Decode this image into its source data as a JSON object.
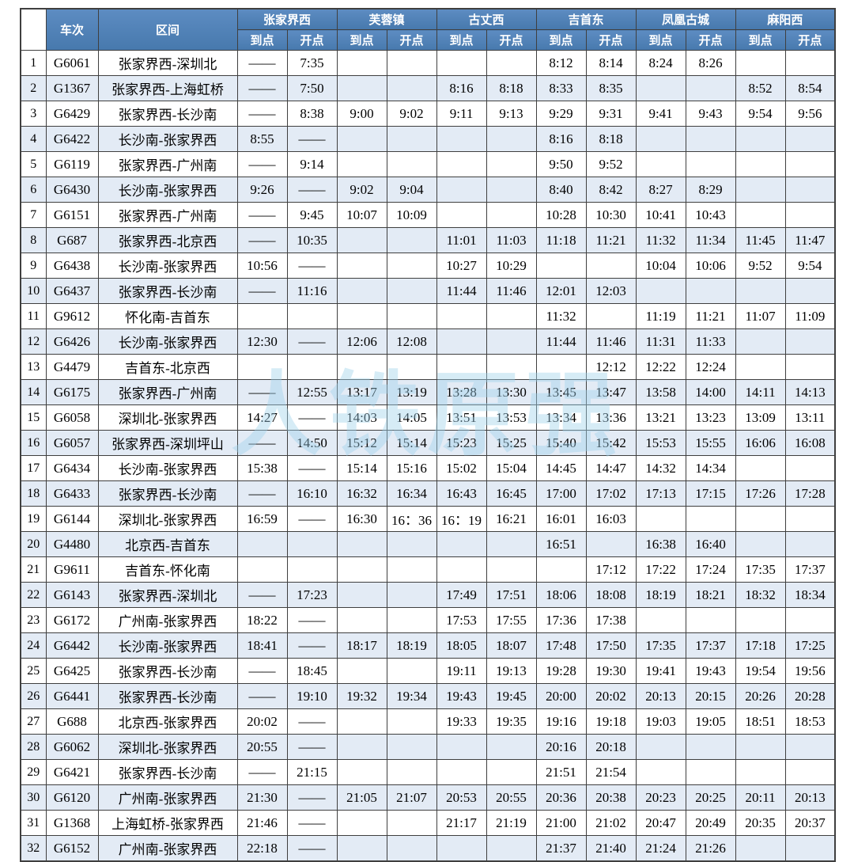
{
  "header": {
    "col_train": "车次",
    "col_section": "区间",
    "stations": [
      "张家界西",
      "芙蓉镇",
      "古丈西",
      "吉首东",
      "凤凰古城",
      "麻阳西"
    ],
    "arr_label": "到点",
    "dep_label": "开点"
  },
  "watermark": {
    "text": "人铁原强"
  },
  "colors": {
    "header_bg_top": "#5d8cc2",
    "header_bg_bottom": "#4779ad",
    "header_text": "#ffffff",
    "row_alt_bg": "#e3ebf5",
    "border": "#3f3f3f",
    "watermark": "#9fd2ec"
  },
  "rows": [
    {
      "no": "1",
      "train": "G6061",
      "section": "张家界西-深圳北",
      "t": [
        "——",
        "7:35",
        "",
        "",
        "",
        "",
        "8:12",
        "8:14",
        "8:24",
        "8:26",
        "",
        ""
      ]
    },
    {
      "no": "2",
      "train": "G1367",
      "section": "张家界西-上海虹桥",
      "t": [
        "——",
        "7:50",
        "",
        "",
        "8:16",
        "8:18",
        "8:33",
        "8:35",
        "",
        "",
        "8:52",
        "8:54"
      ]
    },
    {
      "no": "3",
      "train": "G6429",
      "section": "张家界西-长沙南",
      "t": [
        "——",
        "8:38",
        "9:00",
        "9:02",
        "9:11",
        "9:13",
        "9:29",
        "9:31",
        "9:41",
        "9:43",
        "9:54",
        "9:56"
      ]
    },
    {
      "no": "4",
      "train": "G6422",
      "section": "长沙南-张家界西",
      "t": [
        "8:55",
        "——",
        "",
        "",
        "",
        "",
        "8:16",
        "8:18",
        "",
        "",
        "",
        ""
      ]
    },
    {
      "no": "5",
      "train": "G6119",
      "section": "张家界西-广州南",
      "t": [
        "——",
        "9:14",
        "",
        "",
        "",
        "",
        "9:50",
        "9:52",
        "",
        "",
        "",
        ""
      ]
    },
    {
      "no": "6",
      "train": "G6430",
      "section": "长沙南-张家界西",
      "t": [
        "9:26",
        "——",
        "9:02",
        "9:04",
        "",
        "",
        "8:40",
        "8:42",
        "8:27",
        "8:29",
        "",
        ""
      ]
    },
    {
      "no": "7",
      "train": "G6151",
      "section": "张家界西-广州南",
      "t": [
        "——",
        "9:45",
        "10:07",
        "10:09",
        "",
        "",
        "10:28",
        "10:30",
        "10:41",
        "10:43",
        "",
        ""
      ]
    },
    {
      "no": "8",
      "train": "G687",
      "section": "张家界西-北京西",
      "t": [
        "——",
        "10:35",
        "",
        "",
        "11:01",
        "11:03",
        "11:18",
        "11:21",
        "11:32",
        "11:34",
        "11:45",
        "11:47"
      ]
    },
    {
      "no": "9",
      "train": "G6438",
      "section": "长沙南-张家界西",
      "t": [
        "10:56",
        "——",
        "",
        "",
        "10:27",
        "10:29",
        "",
        "",
        "10:04",
        "10:06",
        "9:52",
        "9:54"
      ]
    },
    {
      "no": "10",
      "train": "G6437",
      "section": "张家界西-长沙南",
      "t": [
        "——",
        "11:16",
        "",
        "",
        "11:44",
        "11:46",
        "12:01",
        "12:03",
        "",
        "",
        "",
        ""
      ]
    },
    {
      "no": "11",
      "train": "G9612",
      "section": "怀化南-吉首东",
      "t": [
        "",
        "",
        "",
        "",
        "",
        "",
        "11:32",
        "",
        "11:19",
        "11:21",
        "11:07",
        "11:09"
      ]
    },
    {
      "no": "12",
      "train": "G6426",
      "section": "长沙南-张家界西",
      "t": [
        "12:30",
        "——",
        "12:06",
        "12:08",
        "",
        "",
        "11:44",
        "11:46",
        "11:31",
        "11:33",
        "",
        ""
      ]
    },
    {
      "no": "13",
      "train": "G4479",
      "section": "吉首东-北京西",
      "t": [
        "",
        "",
        "",
        "",
        "",
        "",
        "",
        "12:12",
        "12:22",
        "12:24",
        "",
        ""
      ]
    },
    {
      "no": "14",
      "train": "G6175",
      "section": "张家界西-广州南",
      "t": [
        "——",
        "12:55",
        "13:17",
        "13:19",
        "13:28",
        "13:30",
        "13:45",
        "13:47",
        "13:58",
        "14:00",
        "14:11",
        "14:13"
      ]
    },
    {
      "no": "15",
      "train": "G6058",
      "section": "深圳北-张家界西",
      "t": [
        "14:27",
        "——",
        "14:03",
        "14:05",
        "13:51",
        "13:53",
        "13:34",
        "13:36",
        "13:21",
        "13:23",
        "13:09",
        "13:11"
      ]
    },
    {
      "no": "16",
      "train": "G6057",
      "section": "张家界西-深圳坪山",
      "t": [
        "——",
        "14:50",
        "15:12",
        "15:14",
        "15:23",
        "15:25",
        "15:40",
        "15:42",
        "15:53",
        "15:55",
        "16:06",
        "16:08"
      ]
    },
    {
      "no": "17",
      "train": "G6434",
      "section": "长沙南-张家界西",
      "t": [
        "15:38",
        "——",
        "15:14",
        "15:16",
        "15:02",
        "15:04",
        "14:45",
        "14:47",
        "14:32",
        "14:34",
        "",
        ""
      ]
    },
    {
      "no": "18",
      "train": "G6433",
      "section": "张家界西-长沙南",
      "t": [
        "——",
        "16:10",
        "16:32",
        "16:34",
        "16:43",
        "16:45",
        "17:00",
        "17:02",
        "17:13",
        "17:15",
        "17:26",
        "17:28"
      ]
    },
    {
      "no": "19",
      "train": "G6144",
      "section": "深圳北-张家界西",
      "t": [
        "16:59",
        "——",
        "16:30",
        "16：36",
        "16：19",
        "16:21",
        "16:01",
        "16:03",
        "",
        "",
        "",
        ""
      ]
    },
    {
      "no": "20",
      "train": "G4480",
      "section": "北京西-吉首东",
      "t": [
        "",
        "",
        "",
        "",
        "",
        "",
        "16:51",
        "",
        "16:38",
        "16:40",
        "",
        ""
      ]
    },
    {
      "no": "21",
      "train": "G9611",
      "section": "吉首东-怀化南",
      "t": [
        "",
        "",
        "",
        "",
        "",
        "",
        "",
        "17:12",
        "17:22",
        "17:24",
        "17:35",
        "17:37"
      ]
    },
    {
      "no": "22",
      "train": "G6143",
      "section": "张家界西-深圳北",
      "t": [
        "——",
        "17:23",
        "",
        "",
        "17:49",
        "17:51",
        "18:06",
        "18:08",
        "18:19",
        "18:21",
        "18:32",
        "18:34"
      ]
    },
    {
      "no": "23",
      "train": "G6172",
      "section": "广州南-张家界西",
      "t": [
        "18:22",
        "——",
        "",
        "",
        "17:53",
        "17:55",
        "17:36",
        "17:38",
        "",
        "",
        "",
        ""
      ]
    },
    {
      "no": "24",
      "train": "G6442",
      "section": "长沙南-张家界西",
      "t": [
        "18:41",
        "——",
        "18:17",
        "18:19",
        "18:05",
        "18:07",
        "17:48",
        "17:50",
        "17:35",
        "17:37",
        "17:18",
        "17:25"
      ]
    },
    {
      "no": "25",
      "train": "G6425",
      "section": "张家界西-长沙南",
      "t": [
        "——",
        "18:45",
        "",
        "",
        "19:11",
        "19:13",
        "19:28",
        "19:30",
        "19:41",
        "19:43",
        "19:54",
        "19:56"
      ]
    },
    {
      "no": "26",
      "train": "G6441",
      "section": "张家界西-长沙南",
      "t": [
        "——",
        "19:10",
        "19:32",
        "19:34",
        "19:43",
        "19:45",
        "20:00",
        "20:02",
        "20:13",
        "20:15",
        "20:26",
        "20:28"
      ]
    },
    {
      "no": "27",
      "train": "G688",
      "section": "北京西-张家界西",
      "t": [
        "20:02",
        "——",
        "",
        "",
        "19:33",
        "19:35",
        "19:16",
        "19:18",
        "19:03",
        "19:05",
        "18:51",
        "18:53"
      ]
    },
    {
      "no": "28",
      "train": "G6062",
      "section": "深圳北-张家界西",
      "t": [
        "20:55",
        "——",
        "",
        "",
        "",
        "",
        "20:16",
        "20:18",
        "",
        "",
        "",
        ""
      ]
    },
    {
      "no": "29",
      "train": "G6421",
      "section": "张家界西-长沙南",
      "t": [
        "——",
        "21:15",
        "",
        "",
        "",
        "",
        "21:51",
        "21:54",
        "",
        "",
        "",
        ""
      ]
    },
    {
      "no": "30",
      "train": "G6120",
      "section": "广州南-张家界西",
      "t": [
        "21:30",
        "——",
        "21:05",
        "21:07",
        "20:53",
        "20:55",
        "20:36",
        "20:38",
        "20:23",
        "20:25",
        "20:11",
        "20:13"
      ]
    },
    {
      "no": "31",
      "train": "G1368",
      "section": "上海虹桥-张家界西",
      "t": [
        "21:46",
        "——",
        "",
        "",
        "21:17",
        "21:19",
        "21:00",
        "21:02",
        "20:47",
        "20:49",
        "20:35",
        "20:37"
      ]
    },
    {
      "no": "32",
      "train": "G6152",
      "section": "广州南-张家界西",
      "t": [
        "22:18",
        "——",
        "",
        "",
        "",
        "",
        "21:37",
        "21:40",
        "21:24",
        "21:26",
        "",
        ""
      ]
    }
  ]
}
